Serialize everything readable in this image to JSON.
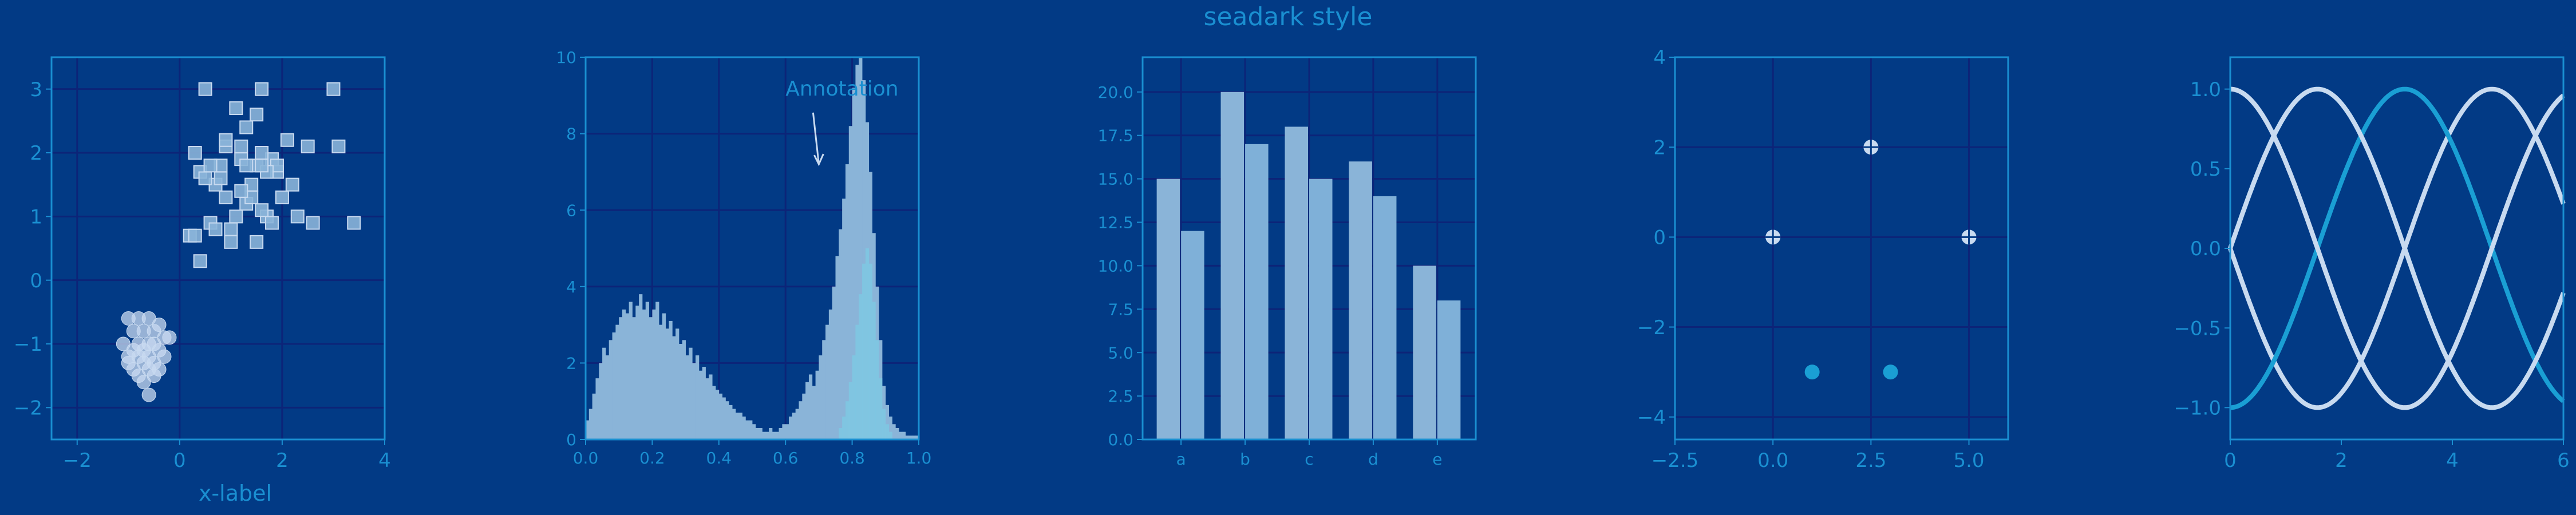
{
  "figure": {
    "title": "seadark style",
    "colors": {
      "background": "#023a85",
      "frame": "#1a8fd1",
      "grid": "#0c2478",
      "text": "#1a8fd1",
      "light": "#c8daf0",
      "mid": "#8ab4d8",
      "bright": "#7ec8e3",
      "cyan": "#1a9fd4"
    }
  },
  "chart_data": [
    {
      "type": "scatter",
      "xlabel": "x-label",
      "xlim": [
        -2.5,
        4
      ],
      "ylim": [
        -2.5,
        3.5
      ],
      "xticks": [
        -2,
        0,
        2,
        4
      ],
      "yticks": [
        -2,
        -1,
        0,
        1,
        2,
        3
      ],
      "series": [
        {
          "marker": "square",
          "x": [
            0.5,
            1.6,
            1.1,
            3.0,
            1.3,
            0.3,
            0.4,
            0.8,
            1.5,
            1.9,
            1.2,
            0.7,
            0.9,
            2.1,
            1.8,
            1.4,
            0.6,
            1.0,
            1.7,
            2.3,
            2.6,
            1.5,
            0.9,
            1.2,
            0.5,
            1.6,
            3.1,
            2.5,
            0.7,
            1.3,
            1.9,
            0.2,
            0.8,
            1.1,
            1.4,
            1.6,
            0.4,
            2.0,
            1.7,
            3.4,
            0.6,
            1.2,
            1.0,
            1.5,
            1.8,
            2.2,
            0.3,
            1.3,
            0.9,
            1.6
          ],
          "y": [
            3.0,
            3.0,
            2.7,
            3.0,
            2.4,
            2.0,
            1.7,
            1.8,
            1.8,
            1.7,
            2.1,
            1.5,
            1.3,
            2.2,
            1.9,
            1.5,
            0.9,
            0.8,
            1.0,
            1.0,
            0.9,
            0.6,
            2.1,
            1.9,
            1.6,
            2.0,
            2.1,
            2.1,
            0.8,
            1.2,
            1.8,
            0.7,
            1.6,
            1.0,
            1.3,
            1.1,
            0.3,
            1.3,
            1.7,
            0.9,
            1.8,
            1.4,
            0.6,
            2.6,
            0.9,
            1.5,
            0.7,
            1.8,
            2.2,
            1.8
          ]
        },
        {
          "marker": "circle",
          "x": [
            -1.0,
            -0.8,
            -0.6,
            -0.4,
            -0.9,
            -0.7,
            -0.5,
            -0.3,
            -1.1,
            -0.6,
            -0.8,
            -0.5,
            -0.9,
            -0.7,
            -0.4,
            -0.6,
            -1.0,
            -0.8,
            -0.3,
            -0.5,
            -0.7,
            -0.9,
            -0.6,
            -0.4,
            -0.8,
            -0.5,
            -0.7,
            -1.0,
            -0.6,
            -0.2
          ],
          "y": [
            -0.6,
            -0.6,
            -0.6,
            -0.7,
            -0.8,
            -0.8,
            -0.8,
            -0.9,
            -1.0,
            -1.0,
            -1.0,
            -1.0,
            -1.1,
            -1.1,
            -1.1,
            -1.2,
            -1.2,
            -1.2,
            -1.2,
            -1.3,
            -1.3,
            -1.4,
            -1.4,
            -1.4,
            -1.5,
            -1.5,
            -1.6,
            -1.3,
            -1.8,
            -0.9
          ]
        }
      ]
    },
    {
      "type": "bar",
      "subtype": "histogram",
      "xlim": [
        0,
        1
      ],
      "ylim": [
        0,
        10
      ],
      "xticks": [
        0.0,
        0.2,
        0.4,
        0.6,
        0.8,
        1.0
      ],
      "yticks": [
        0,
        2,
        4,
        6,
        8,
        10
      ],
      "annotation": "Annotation",
      "annotation_text_at": [
        0.6,
        9.0
      ],
      "annotation_arrow_to": [
        0.7,
        7.2
      ],
      "bin_width": 0.01,
      "series": [
        {
          "name": "",
          "start": 0.0,
          "values": [
            0.5,
            0.8,
            1.2,
            1.6,
            2.0,
            2.4,
            2.2,
            2.6,
            2.8,
            3.0,
            3.2,
            3.4,
            3.3,
            3.6,
            3.2,
            3.5,
            3.8,
            3.4,
            3.6,
            3.2,
            3.4,
            3.6,
            3.0,
            3.3,
            2.9,
            3.1,
            2.7,
            2.9,
            2.5,
            2.6,
            2.2,
            2.4,
            2.0,
            2.2,
            1.8,
            1.9,
            1.6,
            1.7,
            1.4,
            1.3,
            1.2,
            1.1,
            1.0,
            0.9,
            0.8,
            0.7,
            0.7,
            0.6,
            0.5,
            0.5,
            0.4,
            0.3,
            0.3,
            0.2,
            0.2,
            0.3,
            0.2,
            0.2,
            0.3,
            0.4,
            0.4,
            0.6,
            0.7,
            0.8,
            1.0,
            1.2,
            1.5,
            1.7,
            1.4,
            1.8,
            2.2,
            2.6,
            3.0,
            3.4,
            4.0,
            4.8,
            5.5,
            6.3,
            7.2,
            8.2,
            9.2,
            9.8,
            10.0,
            9.4,
            8.3,
            7.0,
            5.4,
            4.0,
            2.6,
            1.4,
            0.9,
            0.6,
            0.4,
            0.3,
            0.2,
            0.2,
            0.1,
            0.1,
            0.1,
            0.1
          ]
        },
        {
          "name": "",
          "start": 0.76,
          "values": [
            0.3,
            0.6,
            1.0,
            1.5,
            2.2,
            3.0,
            3.8,
            4.6,
            5.0,
            4.6,
            3.6,
            2.6,
            1.6,
            0.8,
            0.4,
            0.2
          ]
        }
      ]
    },
    {
      "type": "bar",
      "categories": [
        "a",
        "b",
        "c",
        "d",
        "e"
      ],
      "ylim": [
        0,
        22
      ],
      "yticks": [
        0.0,
        2.5,
        5.0,
        7.5,
        10.0,
        12.5,
        15.0,
        17.5,
        20.0
      ],
      "series": [
        {
          "name": "",
          "values": [
            15,
            20,
            18,
            16,
            10
          ]
        },
        {
          "name": "",
          "values": [
            12,
            17,
            15,
            14,
            8
          ]
        }
      ]
    },
    {
      "type": "scatter",
      "xlim": [
        -2.5,
        6.0
      ],
      "ylim": [
        -4.5,
        4.0
      ],
      "xticks": [
        -2.5,
        0.0,
        2.5,
        5.0
      ],
      "yticks": [
        -4,
        -2,
        0,
        2,
        4
      ],
      "series": [
        {
          "marker": "plus-circle",
          "x": [
            0,
            2.5,
            5
          ],
          "y": [
            0,
            2,
            0
          ]
        },
        {
          "marker": "circle",
          "x": [
            1,
            3
          ],
          "y": [
            -3,
            -3
          ]
        }
      ]
    },
    {
      "type": "line",
      "xlim": [
        0,
        6
      ],
      "ylim": [
        -1.2,
        1.2
      ],
      "xticks": [
        0,
        2,
        4,
        6
      ],
      "yticks": [
        -1.0,
        -0.5,
        0.0,
        0.5,
        1.0
      ],
      "series": [
        {
          "name": "",
          "phase": 0.0
        },
        {
          "name": "",
          "phase": 0.5
        },
        {
          "name": "",
          "phase": 1.0
        },
        {
          "name": "",
          "phase": 1.5
        },
        {
          "name": "",
          "phase": 2.0
        },
        {
          "name": "",
          "phase": 2.5
        }
      ]
    }
  ]
}
